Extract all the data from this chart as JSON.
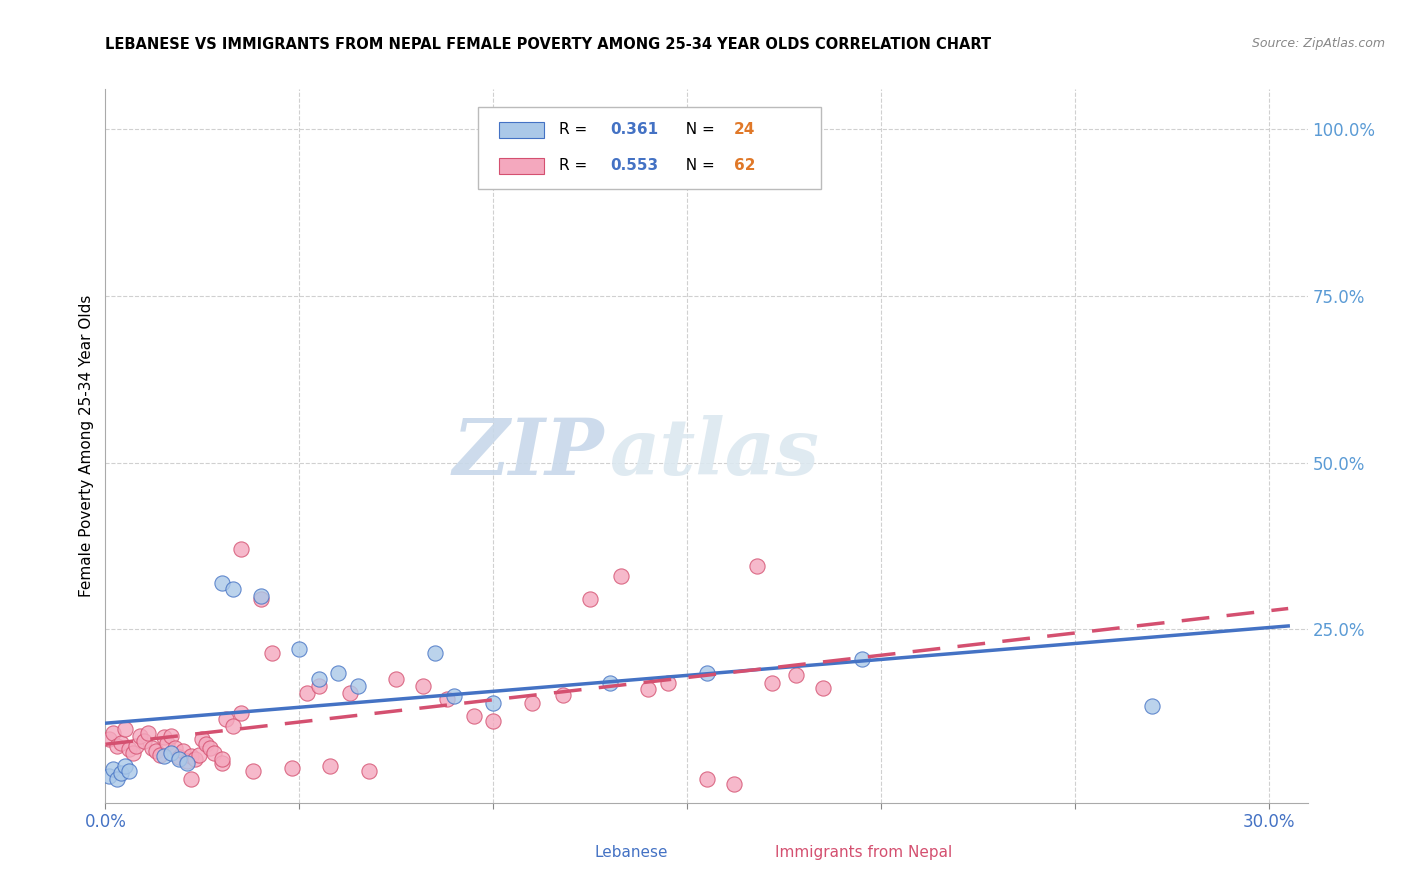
{
  "title": "LEBANESE VS IMMIGRANTS FROM NEPAL FEMALE POVERTY AMONG 25-34 YEAR OLDS CORRELATION CHART",
  "source": "Source: ZipAtlas.com",
  "ylabel": "Female Poverty Among 25-34 Year Olds",
  "xlim": [
    0.0,
    0.31
  ],
  "ylim": [
    -0.01,
    1.06
  ],
  "xticks": [
    0.0,
    0.05,
    0.1,
    0.15,
    0.2,
    0.25,
    0.3
  ],
  "xticklabels": [
    "0.0%",
    "",
    "",
    "",
    "",
    "",
    "30.0%"
  ],
  "yticks_right": [
    0.25,
    0.5,
    0.75,
    1.0
  ],
  "yticklabels_right": [
    "25.0%",
    "50.0%",
    "75.0%",
    "100.0%"
  ],
  "blue_color": "#aac8e8",
  "pink_color": "#f4a8be",
  "blue_line_color": "#4472c4",
  "pink_line_color": "#d45070",
  "right_axis_color": "#5b9bd5",
  "watermark_zip": "ZIP",
  "watermark_atlas": "atlas",
  "lebanese_x": [
    0.001,
    0.002,
    0.003,
    0.004,
    0.005,
    0.006,
    0.015,
    0.017,
    0.019,
    0.021,
    0.03,
    0.033,
    0.04,
    0.05,
    0.055,
    0.06,
    0.065,
    0.085,
    0.09,
    0.1,
    0.13,
    0.155,
    0.195,
    0.27
  ],
  "lebanese_y": [
    0.03,
    0.04,
    0.025,
    0.035,
    0.045,
    0.038,
    0.06,
    0.065,
    0.055,
    0.05,
    0.32,
    0.31,
    0.3,
    0.22,
    0.175,
    0.185,
    0.165,
    0.215,
    0.15,
    0.14,
    0.17,
    0.185,
    0.205,
    0.135
  ],
  "nepal_x": [
    0.001,
    0.002,
    0.003,
    0.004,
    0.005,
    0.006,
    0.007,
    0.008,
    0.009,
    0.01,
    0.011,
    0.012,
    0.013,
    0.014,
    0.015,
    0.016,
    0.017,
    0.018,
    0.019,
    0.02,
    0.021,
    0.022,
    0.023,
    0.024,
    0.025,
    0.026,
    0.027,
    0.028,
    0.03,
    0.031,
    0.033,
    0.035,
    0.038,
    0.04,
    0.043,
    0.048,
    0.052,
    0.055,
    0.058,
    0.063,
    0.068,
    0.075,
    0.082,
    0.088,
    0.095,
    0.1,
    0.11,
    0.118,
    0.125,
    0.133,
    0.14,
    0.145,
    0.155,
    0.162,
    0.168,
    0.172,
    0.178,
    0.185,
    0.022,
    0.03,
    0.035
  ],
  "nepal_y": [
    0.085,
    0.095,
    0.075,
    0.08,
    0.1,
    0.07,
    0.065,
    0.075,
    0.09,
    0.082,
    0.095,
    0.072,
    0.068,
    0.062,
    0.088,
    0.08,
    0.09,
    0.072,
    0.058,
    0.068,
    0.052,
    0.06,
    0.055,
    0.062,
    0.085,
    0.078,
    0.072,
    0.065,
    0.05,
    0.115,
    0.105,
    0.125,
    0.038,
    0.295,
    0.215,
    0.042,
    0.155,
    0.165,
    0.045,
    0.155,
    0.038,
    0.175,
    0.165,
    0.145,
    0.12,
    0.112,
    0.14,
    0.152,
    0.295,
    0.33,
    0.16,
    0.17,
    0.025,
    0.018,
    0.345,
    0.17,
    0.182,
    0.162,
    0.025,
    0.055,
    0.37
  ]
}
